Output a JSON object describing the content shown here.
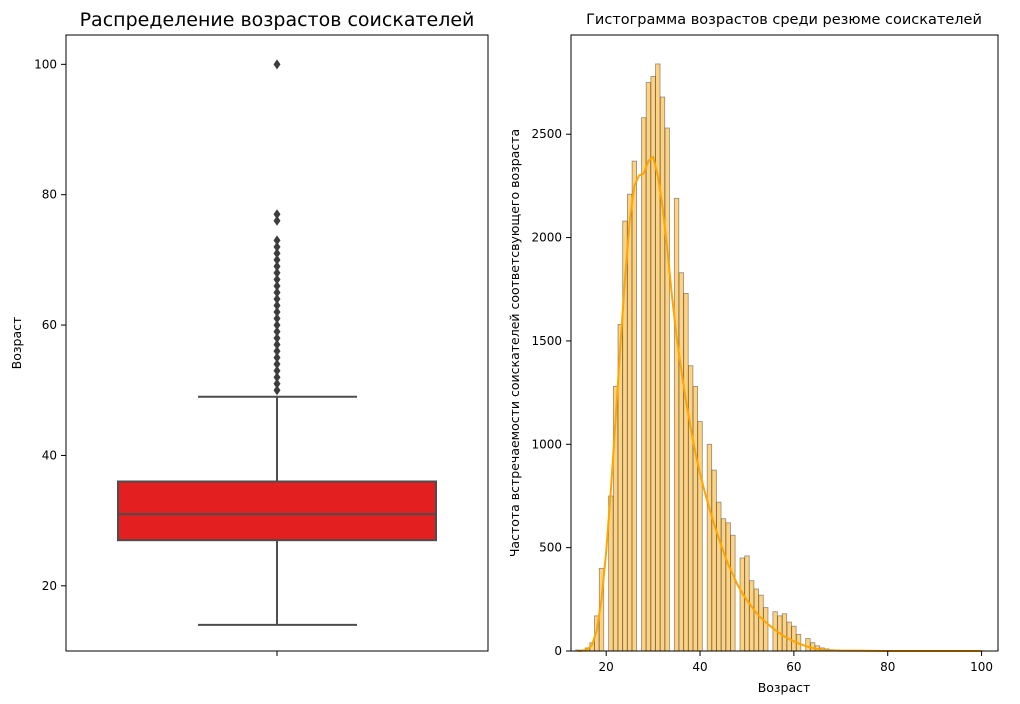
{
  "chart_data": [
    {
      "type": "box",
      "title": "Распределение возрастов соискателей",
      "xlabel": "",
      "ylabel": "Возраст",
      "ylim": [
        10,
        104.5
      ],
      "yticks": [
        20,
        40,
        60,
        80,
        100
      ],
      "grid": false,
      "box_color": "#e31f1f",
      "line_color": "#4d4d4d",
      "stats": {
        "whisker_low": 14,
        "q1": 27,
        "median": 31,
        "q3": 36,
        "whisker_high": 49
      },
      "outliers": [
        50,
        51,
        52,
        53,
        54,
        55,
        56,
        57,
        58,
        59,
        60,
        61,
        62,
        63,
        64,
        65,
        66,
        67,
        68,
        69,
        70,
        71,
        72,
        73,
        76,
        77,
        100
      ]
    },
    {
      "type": "histogram",
      "title": "Гистограмма возрастов среди резюме соискателей",
      "xlabel": "Возраст",
      "ylabel": "Частота встречаемости соискателей соответсвующего возраста",
      "xlim": [
        12.5,
        103.5
      ],
      "ylim": [
        0,
        2980
      ],
      "xticks": [
        20,
        40,
        60,
        80,
        100
      ],
      "yticks": [
        0,
        500,
        1000,
        1500,
        2000,
        2500
      ],
      "grid": false,
      "bar_color": "#ffa500",
      "kde_color": "#ffa500",
      "bin_width": 0.955,
      "bins": [
        {
          "x": 14.0,
          "value": 5
        },
        {
          "x": 15.0,
          "value": 5
        },
        {
          "x": 16.0,
          "value": 15
        },
        {
          "x": 17.0,
          "value": 40
        },
        {
          "x": 18.0,
          "value": 170
        },
        {
          "x": 19.0,
          "value": 400
        },
        {
          "x": 20.0,
          "value": 0
        },
        {
          "x": 21.0,
          "value": 750
        },
        {
          "x": 22.0,
          "value": 1280
        },
        {
          "x": 23.0,
          "value": 1580
        },
        {
          "x": 24.0,
          "value": 2080
        },
        {
          "x": 25.0,
          "value": 2210
        },
        {
          "x": 26.0,
          "value": 2370
        },
        {
          "x": 27.0,
          "value": 0
        },
        {
          "x": 28.0,
          "value": 2580
        },
        {
          "x": 29.0,
          "value": 2750
        },
        {
          "x": 30.0,
          "value": 2780
        },
        {
          "x": 31.0,
          "value": 2840
        },
        {
          "x": 32.0,
          "value": 2680
        },
        {
          "x": 33.0,
          "value": 2530
        },
        {
          "x": 34.0,
          "value": 0
        },
        {
          "x": 35.0,
          "value": 2190
        },
        {
          "x": 36.0,
          "value": 1830
        },
        {
          "x": 37.0,
          "value": 1730
        },
        {
          "x": 38.0,
          "value": 1380
        },
        {
          "x": 39.0,
          "value": 1280
        },
        {
          "x": 40.0,
          "value": 1110
        },
        {
          "x": 41.0,
          "value": 0
        },
        {
          "x": 42.0,
          "value": 1000
        },
        {
          "x": 43.0,
          "value": 875
        },
        {
          "x": 44.0,
          "value": 720
        },
        {
          "x": 45.0,
          "value": 640
        },
        {
          "x": 46.0,
          "value": 620
        },
        {
          "x": 47.0,
          "value": 560
        },
        {
          "x": 48.0,
          "value": 0
        },
        {
          "x": 49.0,
          "value": 450
        },
        {
          "x": 50.0,
          "value": 460
        },
        {
          "x": 51.0,
          "value": 340
        },
        {
          "x": 52.0,
          "value": 300
        },
        {
          "x": 53.0,
          "value": 270
        },
        {
          "x": 54.0,
          "value": 210
        },
        {
          "x": 55.0,
          "value": 0
        },
        {
          "x": 56.0,
          "value": 190
        },
        {
          "x": 57.0,
          "value": 170
        },
        {
          "x": 58.0,
          "value": 180
        },
        {
          "x": 59.0,
          "value": 140
        },
        {
          "x": 60.0,
          "value": 120
        },
        {
          "x": 61.0,
          "value": 80
        },
        {
          "x": 62.0,
          "value": 0
        },
        {
          "x": 63.0,
          "value": 60
        },
        {
          "x": 64.0,
          "value": 40
        },
        {
          "x": 65.0,
          "value": 25
        },
        {
          "x": 66.0,
          "value": 15
        },
        {
          "x": 67.0,
          "value": 10
        },
        {
          "x": 68.0,
          "value": 6
        },
        {
          "x": 69.0,
          "value": 4
        },
        {
          "x": 70.0,
          "value": 3
        },
        {
          "x": 71.0,
          "value": 2
        },
        {
          "x": 72.0,
          "value": 2
        },
        {
          "x": 73.0,
          "value": 1
        },
        {
          "x": 76.0,
          "value": 1
        },
        {
          "x": 77.0,
          "value": 1
        },
        {
          "x": 100.0,
          "value": 1
        }
      ],
      "kde": [
        [
          14,
          0
        ],
        [
          15,
          2
        ],
        [
          16,
          8
        ],
        [
          17,
          30
        ],
        [
          18,
          100
        ],
        [
          19,
          250
        ],
        [
          20,
          480
        ],
        [
          21,
          780
        ],
        [
          22,
          1120
        ],
        [
          23,
          1470
        ],
        [
          24,
          1800
        ],
        [
          25,
          2080
        ],
        [
          26,
          2250
        ],
        [
          27,
          2300
        ],
        [
          28,
          2310
        ],
        [
          29,
          2370
        ],
        [
          30,
          2390
        ],
        [
          31,
          2300
        ],
        [
          32,
          2150
        ],
        [
          33,
          1950
        ],
        [
          34,
          1720
        ],
        [
          35,
          1520
        ],
        [
          36,
          1360
        ],
        [
          37,
          1210
        ],
        [
          38,
          1080
        ],
        [
          39,
          960
        ],
        [
          40,
          860
        ],
        [
          41,
          770
        ],
        [
          42,
          690
        ],
        [
          43,
          615
        ],
        [
          44,
          545
        ],
        [
          45,
          480
        ],
        [
          46,
          420
        ],
        [
          47,
          370
        ],
        [
          48,
          320
        ],
        [
          49,
          280
        ],
        [
          50,
          245
        ],
        [
          51,
          215
        ],
        [
          52,
          185
        ],
        [
          53,
          160
        ],
        [
          54,
          140
        ],
        [
          55,
          120
        ],
        [
          56,
          102
        ],
        [
          57,
          85
        ],
        [
          58,
          70
        ],
        [
          59,
          58
        ],
        [
          60,
          47
        ],
        [
          61,
          37
        ],
        [
          62,
          28
        ],
        [
          63,
          20
        ],
        [
          64,
          14
        ],
        [
          65,
          9
        ],
        [
          66,
          6
        ],
        [
          67,
          4
        ],
        [
          68,
          3
        ],
        [
          70,
          2
        ],
        [
          75,
          1
        ],
        [
          80,
          0
        ],
        [
          90,
          0
        ],
        [
          100,
          0
        ]
      ]
    }
  ]
}
